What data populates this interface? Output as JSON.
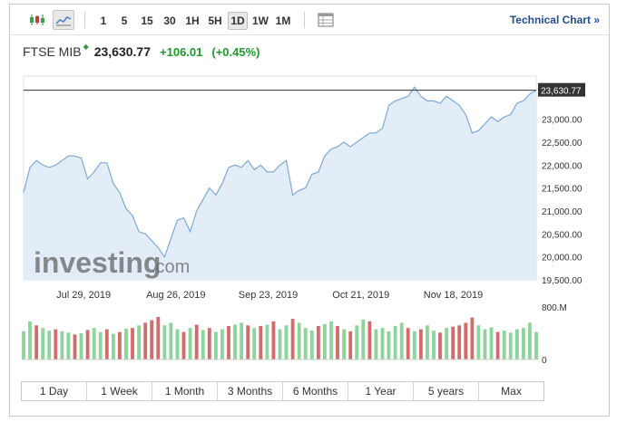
{
  "toolbar": {
    "candles_icon": "candlestick-icon",
    "line_icon": "line-chart-icon",
    "intervals": [
      "1",
      "5",
      "15",
      "30",
      "1H",
      "5H",
      "1D",
      "1W",
      "1M"
    ],
    "active_interval": "1D",
    "table_icon": "table-icon",
    "technical_chart_label": "Technical Chart",
    "technical_chart_arrow": "»"
  },
  "quote": {
    "name": "FTSE MIB",
    "marker": "◆",
    "price": "23,630.77",
    "change": "+106.01",
    "change_pct": "(+0.45%)"
  },
  "watermark": {
    "brand": "investing",
    "suffix": ".com"
  },
  "ranges": [
    "1 Day",
    "1 Week",
    "1 Month",
    "3 Months",
    "6 Months",
    "1 Year",
    "5 years",
    "Max"
  ],
  "colors": {
    "line": "#7ea9d6",
    "fill": "#e3edf8",
    "up_volume": "#8cd49a",
    "down_volume": "#d46a6a",
    "price_tag_bg": "#333333",
    "positive": "#1e9a2c",
    "link": "#1f4e96"
  },
  "chart_data": {
    "type": "area",
    "series": [
      {
        "values": [
          21400,
          21950,
          22100,
          22000,
          21950,
          22000,
          22100,
          22200,
          22200,
          22150,
          21700,
          21850,
          22050,
          22050,
          21600,
          21400,
          21050,
          20900,
          20550,
          20500,
          20350,
          20200,
          20000,
          20400,
          20800,
          20850,
          20550,
          21000,
          21250,
          21500,
          21350,
          21600,
          21950,
          22000,
          21950,
          22100,
          21900,
          22000,
          21850,
          21850,
          22000,
          22100,
          21350,
          21450,
          21500,
          21800,
          21850,
          22200,
          22350,
          22400,
          22500,
          22400,
          22500,
          22600,
          22700,
          22700,
          22800,
          23300,
          23400,
          23450,
          23500,
          23700,
          23500,
          23400,
          23400,
          23350,
          23500,
          23400,
          23300,
          23100,
          22700,
          22750,
          22900,
          23050,
          22950,
          23050,
          23100,
          23350,
          23400,
          23550,
          23630.77
        ]
      }
    ],
    "x_tick_labels": [
      "Jul 29, 2019",
      "Aug 26, 2019",
      "Sep 23, 2019",
      "Oct 21, 2019",
      "Nov 18, 2019"
    ],
    "y_tick_labels": [
      "23,000.00",
      "22,500.00",
      "22,000.00",
      "21,500.00",
      "21,000.00",
      "20,500.00",
      "20,000.00",
      "19,500.00"
    ],
    "y_ticks": [
      23000,
      22500,
      22000,
      21500,
      21000,
      20500,
      20000,
      19500
    ],
    "ylim": [
      19500,
      23940
    ],
    "last_price_label": "23,630.77",
    "last_price": 23630.77,
    "volume": {
      "top_label": "800.M",
      "bottom_label": "0",
      "max": 800,
      "values": [
        430,
        580,
        520,
        480,
        440,
        460,
        430,
        410,
        380,
        400,
        450,
        480,
        420,
        460,
        390,
        420,
        470,
        480,
        520,
        560,
        600,
        650,
        520,
        560,
        460,
        420,
        480,
        530,
        450,
        480,
        420,
        460,
        510,
        530,
        560,
        520,
        480,
        510,
        530,
        580,
        460,
        520,
        620,
        560,
        480,
        440,
        510,
        540,
        580,
        510,
        460,
        430,
        520,
        610,
        580,
        460,
        480,
        430,
        510,
        560,
        480,
        430,
        460,
        520,
        440,
        410,
        480,
        500,
        520,
        560,
        640,
        520,
        460,
        490,
        420,
        440,
        410,
        460,
        480,
        560,
        420
      ],
      "up": [
        1,
        1,
        0,
        1,
        1,
        0,
        1,
        1,
        0,
        1,
        0,
        1,
        1,
        0,
        1,
        0,
        1,
        0,
        1,
        0,
        0,
        0,
        1,
        1,
        1,
        0,
        1,
        0,
        1,
        0,
        1,
        1,
        0,
        1,
        1,
        0,
        1,
        0,
        1,
        0,
        1,
        1,
        0,
        1,
        1,
        1,
        0,
        1,
        1,
        0,
        1,
        0,
        1,
        1,
        0,
        1,
        1,
        1,
        1,
        1,
        0,
        1,
        0,
        1,
        1,
        0,
        1,
        0,
        0,
        0,
        0,
        1,
        1,
        1,
        0,
        1,
        1,
        1,
        1,
        1,
        1
      ]
    }
  }
}
